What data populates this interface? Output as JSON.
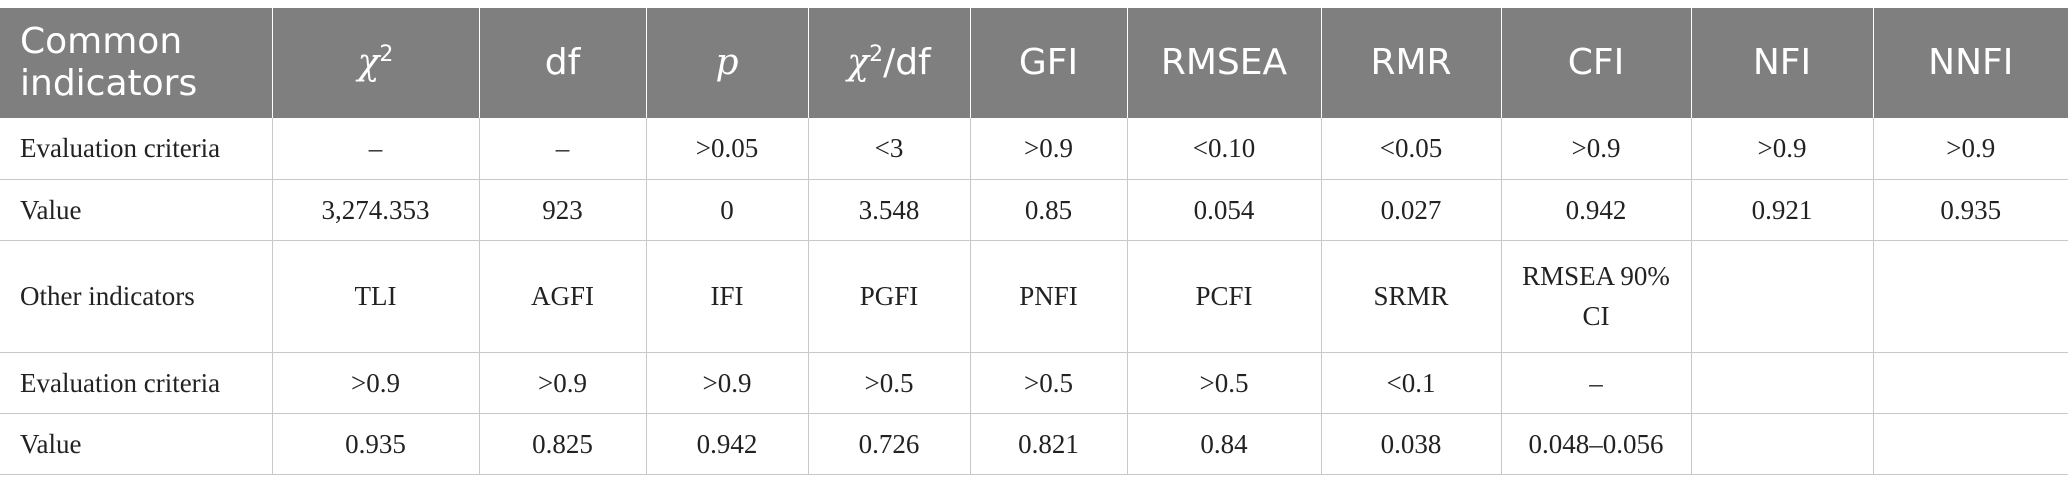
{
  "table": {
    "header": {
      "first": "Common indicators",
      "chi2_symbol": "χ",
      "chi2_sup": "2",
      "df": "df",
      "p": "p",
      "chi2df_symbol": "χ",
      "chi2df_sup": "2",
      "chi2df_suffix": "/df",
      "gfi": "GFI",
      "rmsea": "RMSEA",
      "rmr": "RMR",
      "cfi": "CFI",
      "nfi": "NFI",
      "nnfi": "NNFI"
    },
    "rows": [
      {
        "label": "Evaluation criteria",
        "cells": [
          "–",
          "–",
          ">0.05",
          "<3",
          ">0.9",
          "<0.10",
          "<0.05",
          ">0.9",
          ">0.9",
          ">0.9"
        ]
      },
      {
        "label": "Value",
        "cells": [
          "3,274.353",
          "923",
          "0",
          "3.548",
          "0.85",
          "0.054",
          "0.027",
          "0.942",
          "0.921",
          "0.935"
        ]
      },
      {
        "label": "Other indicators",
        "cells": [
          "TLI",
          "AGFI",
          "IFI",
          "PGFI",
          "PNFI",
          "PCFI",
          "SRMR",
          "RMSEA 90% CI",
          "",
          ""
        ]
      },
      {
        "label": "Evaluation criteria",
        "cells": [
          ">0.9",
          ">0.9",
          ">0.9",
          ">0.5",
          ">0.5",
          ">0.5",
          "<0.1",
          "–",
          "",
          ""
        ]
      },
      {
        "label": "Value",
        "cells": [
          "0.935",
          "0.825",
          "0.942",
          "0.726",
          "0.821",
          "0.84",
          "0.038",
          "0.048–0.056",
          "",
          ""
        ]
      }
    ]
  },
  "colors": {
    "header_bg": "#7f7f7f",
    "header_text": "#ffffff",
    "grid_line": "#c8c8c8",
    "body_text": "#222222"
  }
}
